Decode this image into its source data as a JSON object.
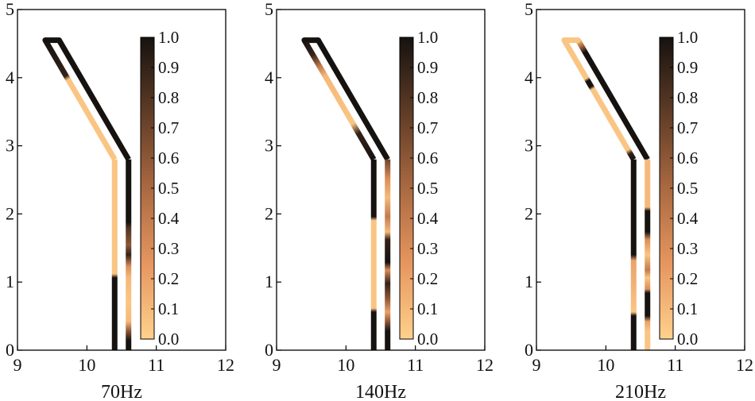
{
  "chart_data": [
    {
      "type": "line",
      "xlabel": "70Hz",
      "xlim": [
        9,
        12
      ],
      "ylim": [
        0,
        5
      ],
      "xticks": [
        "9",
        "10",
        "11",
        "12"
      ],
      "yticks": [
        "0",
        "1",
        "2",
        "3",
        "4",
        "5"
      ],
      "colorbar": {
        "min": 0.0,
        "max": 1.0,
        "ticks": [
          "0.0",
          "0.1",
          "0.2",
          "0.3",
          "0.4",
          "0.5",
          "0.6",
          "0.7",
          "0.8",
          "0.9",
          "1.0"
        ]
      },
      "members": [
        {
          "x": [
            9.4,
            9.6
          ],
          "y": [
            4.55,
            4.55
          ],
          "stops": [
            [
              0,
              1
            ],
            [
              1,
              1
            ]
          ]
        },
        {
          "x": [
            9.4,
            10.4
          ],
          "y": [
            4.55,
            2.8
          ],
          "stops": [
            [
              0,
              1
            ],
            [
              0.3,
              0.9
            ],
            [
              0.33,
              0.05
            ],
            [
              1,
              0.05
            ]
          ]
        },
        {
          "x": [
            9.6,
            10.6
          ],
          "y": [
            4.55,
            2.8
          ],
          "stops": [
            [
              0,
              1
            ],
            [
              1,
              1
            ]
          ]
        },
        {
          "x": [
            10.4,
            10.4
          ],
          "y": [
            2.8,
            0
          ],
          "stops": [
            [
              0,
              0.05
            ],
            [
              0.6,
              0.05
            ],
            [
              0.62,
              1
            ],
            [
              1,
              1
            ]
          ]
        },
        {
          "x": [
            10.6,
            10.6
          ],
          "y": [
            2.8,
            0
          ],
          "stops": [
            [
              0,
              1
            ],
            [
              0.33,
              1
            ],
            [
              0.36,
              0.8
            ],
            [
              0.45,
              0.6
            ],
            [
              0.5,
              0.9
            ],
            [
              0.56,
              0.3
            ],
            [
              0.62,
              0.1
            ],
            [
              0.75,
              0.05
            ],
            [
              0.85,
              0.1
            ],
            [
              0.9,
              0.6
            ],
            [
              0.95,
              1
            ],
            [
              1,
              1
            ]
          ]
        }
      ]
    },
    {
      "type": "line",
      "xlabel": "140Hz",
      "xlim": [
        9,
        12
      ],
      "ylim": [
        0,
        5
      ],
      "xticks": [
        "9",
        "10",
        "11",
        "12"
      ],
      "yticks": [
        "0",
        "1",
        "2",
        "3",
        "4",
        "5"
      ],
      "colorbar": {
        "min": 0.0,
        "max": 1.0,
        "ticks": [
          "0.0",
          "0.1",
          "0.2",
          "0.3",
          "0.4",
          "0.5",
          "0.6",
          "0.7",
          "0.8",
          "0.9",
          "1.0"
        ]
      },
      "members": [
        {
          "x": [
            9.4,
            9.6
          ],
          "y": [
            4.55,
            4.55
          ],
          "stops": [
            [
              0,
              1
            ],
            [
              1,
              1
            ]
          ]
        },
        {
          "x": [
            9.4,
            10.4
          ],
          "y": [
            4.55,
            2.8
          ],
          "stops": [
            [
              0,
              1
            ],
            [
              0.12,
              0.9
            ],
            [
              0.22,
              0.4
            ],
            [
              0.3,
              0.1
            ],
            [
              0.7,
              0.05
            ],
            [
              0.78,
              0.9
            ],
            [
              1,
              1
            ]
          ]
        },
        {
          "x": [
            9.6,
            10.6
          ],
          "y": [
            4.55,
            2.8
          ],
          "stops": [
            [
              0,
              1
            ],
            [
              1,
              1
            ]
          ]
        },
        {
          "x": [
            10.4,
            10.4
          ],
          "y": [
            2.8,
            0
          ],
          "stops": [
            [
              0,
              1
            ],
            [
              0.3,
              1
            ],
            [
              0.32,
              0.05
            ],
            [
              0.78,
              0.05
            ],
            [
              0.8,
              1
            ],
            [
              1,
              1
            ]
          ]
        },
        {
          "x": [
            10.6,
            10.6
          ],
          "y": [
            2.8,
            0
          ],
          "stops": [
            [
              0,
              0.7
            ],
            [
              0.1,
              0.3
            ],
            [
              0.2,
              0.1
            ],
            [
              0.3,
              0.4
            ],
            [
              0.38,
              0.1
            ],
            [
              0.42,
              0.9
            ],
            [
              0.54,
              1
            ],
            [
              0.58,
              0.3
            ],
            [
              0.65,
              0.9
            ],
            [
              0.73,
              0.6
            ],
            [
              0.8,
              0.2
            ],
            [
              0.85,
              0.6
            ],
            [
              0.9,
              1
            ],
            [
              1,
              1
            ]
          ]
        }
      ]
    },
    {
      "type": "line",
      "xlabel": "210Hz",
      "xlim": [
        9,
        12
      ],
      "ylim": [
        0,
        5
      ],
      "xticks": [
        "9",
        "10",
        "11",
        "12"
      ],
      "yticks": [
        "0",
        "1",
        "2",
        "3",
        "4",
        "5"
      ],
      "colorbar": {
        "min": 0.0,
        "max": 1.0,
        "ticks": [
          "0.0",
          "0.1",
          "0.2",
          "0.3",
          "0.4",
          "0.5",
          "0.6",
          "0.7",
          "0.8",
          "0.9",
          "1.0"
        ]
      },
      "members": [
        {
          "x": [
            9.4,
            9.6
          ],
          "y": [
            4.55,
            4.55
          ],
          "stops": [
            [
              0,
              0.05
            ],
            [
              1,
              0.05
            ]
          ]
        },
        {
          "x": [
            9.4,
            10.4
          ],
          "y": [
            4.55,
            2.8
          ],
          "stops": [
            [
              0,
              0.05
            ],
            [
              0.32,
              0.05
            ],
            [
              0.34,
              1
            ],
            [
              0.39,
              1
            ],
            [
              0.41,
              0.05
            ],
            [
              0.92,
              0.05
            ],
            [
              0.95,
              0.9
            ],
            [
              1,
              1
            ]
          ]
        },
        {
          "x": [
            9.6,
            10.6
          ],
          "y": [
            4.55,
            2.8
          ],
          "stops": [
            [
              0,
              0.05
            ],
            [
              0.05,
              0.5
            ],
            [
              0.1,
              1
            ],
            [
              1,
              1
            ]
          ]
        },
        {
          "x": [
            10.4,
            10.4
          ],
          "y": [
            2.8,
            0
          ],
          "stops": [
            [
              0,
              1
            ],
            [
              0.5,
              1
            ],
            [
              0.53,
              0.2
            ],
            [
              0.8,
              0.05
            ],
            [
              0.82,
              1
            ],
            [
              1,
              1
            ]
          ]
        },
        {
          "x": [
            10.6,
            10.6
          ],
          "y": [
            2.8,
            0
          ],
          "stops": [
            [
              0,
              0.1
            ],
            [
              0.25,
              0.1
            ],
            [
              0.27,
              1
            ],
            [
              0.38,
              1
            ],
            [
              0.42,
              0.3
            ],
            [
              0.5,
              0.05
            ],
            [
              0.58,
              0.4
            ],
            [
              0.62,
              0.05
            ],
            [
              0.68,
              0.3
            ],
            [
              0.7,
              1
            ],
            [
              0.82,
              1
            ],
            [
              0.85,
              0.2
            ],
            [
              0.9,
              0.05
            ],
            [
              1,
              0.05
            ]
          ]
        }
      ]
    }
  ]
}
